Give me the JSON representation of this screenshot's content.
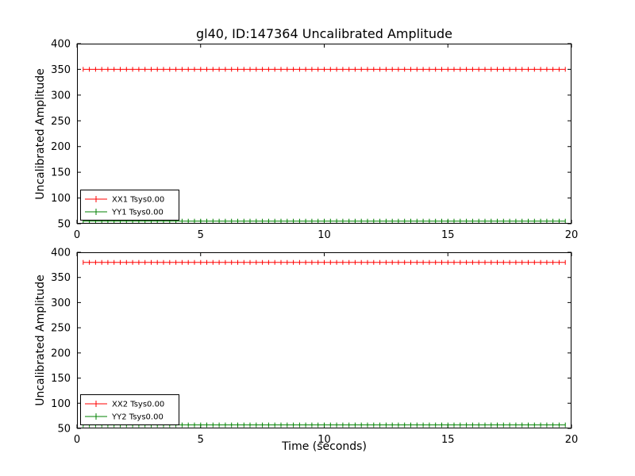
{
  "figure": {
    "title": "gl40, ID:147364 Uncalibrated Amplitude",
    "background": "#ffffff",
    "axis_color": "#000000"
  },
  "chart_data": [
    {
      "type": "line",
      "subplot": "top",
      "title": "",
      "xlabel": "",
      "ylabel": "Uncalibrated Amplitude",
      "xlim": [
        0,
        20
      ],
      "ylim": [
        50,
        400
      ],
      "xticks": [
        0,
        5,
        10,
        15,
        20
      ],
      "yticks": [
        50,
        100,
        150,
        200,
        250,
        300,
        350,
        400
      ],
      "grid": false,
      "legend_position": "lower-left",
      "series": [
        {
          "name": "XX1 Tsys0.00",
          "color": "#ff0000",
          "marker": "+",
          "x_start": 0.25,
          "x_end": 19.8,
          "x_step": 0.25,
          "y_constant": 350
        },
        {
          "name": "YY1 Tsys0.00",
          "color": "#008000",
          "marker": "+",
          "x_start": 0.25,
          "x_end": 19.8,
          "x_step": 0.25,
          "y_constant": 55
        }
      ]
    },
    {
      "type": "line",
      "subplot": "bottom",
      "title": "",
      "xlabel": "Time (seconds)",
      "ylabel": "Uncalibrated Amplitude",
      "xlim": [
        0,
        20
      ],
      "ylim": [
        50,
        400
      ],
      "xticks": [
        0,
        5,
        10,
        15,
        20
      ],
      "yticks": [
        50,
        100,
        150,
        200,
        250,
        300,
        350,
        400
      ],
      "grid": false,
      "legend_position": "lower-left",
      "series": [
        {
          "name": "XX2 Tsys0.00",
          "color": "#ff0000",
          "marker": "+",
          "x_start": 0.25,
          "x_end": 19.8,
          "x_step": 0.25,
          "y_constant": 380
        },
        {
          "name": "YY2 Tsys0.00",
          "color": "#008000",
          "marker": "+",
          "x_start": 0.25,
          "x_end": 19.8,
          "x_step": 0.25,
          "y_constant": 57
        }
      ]
    }
  ]
}
